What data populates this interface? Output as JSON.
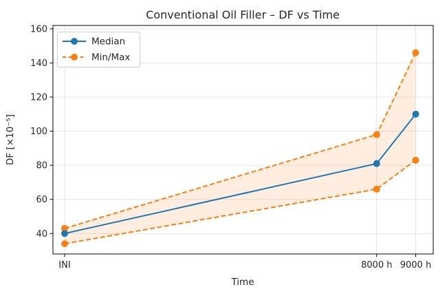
{
  "chart_data": {
    "type": "line",
    "title": "Conventional Oil Filler – DF vs Time",
    "xlabel": "Time",
    "ylabel": "DF [×10⁻⁵]",
    "x": [
      0,
      8000,
      9000
    ],
    "x_tick_labels": [
      "INI",
      "8000 h",
      "9000 h"
    ],
    "yticks": [
      40,
      60,
      80,
      100,
      120,
      140,
      160
    ],
    "xlim": [
      -300,
      9450
    ],
    "ylim": [
      28,
      162
    ],
    "grid": true,
    "legend_position": "upper left",
    "legend": [
      "Median",
      "Min/Max"
    ],
    "series": [
      {
        "name": "Median",
        "values": [
          40,
          81,
          110
        ],
        "color": "#1f77b4",
        "line_style": "solid",
        "marker": "circle"
      },
      {
        "name": "Max",
        "values": [
          43,
          98,
          146
        ],
        "color": "#ff7f0e",
        "line_style": "dashed",
        "marker": "circle"
      },
      {
        "name": "Min",
        "values": [
          34,
          66,
          83
        ],
        "color": "#ff7f0e",
        "line_style": "dashed",
        "marker": "circle"
      }
    ],
    "band": {
      "upper": "Max",
      "lower": "Min",
      "fill": "#ff7f0e",
      "opacity": 0.13
    },
    "colors": {
      "median": "#1f77b4",
      "minmax": "#ff7f0e",
      "grid": "#e5e5e5",
      "spine": "#000000",
      "legend_border": "#cccccc"
    }
  }
}
